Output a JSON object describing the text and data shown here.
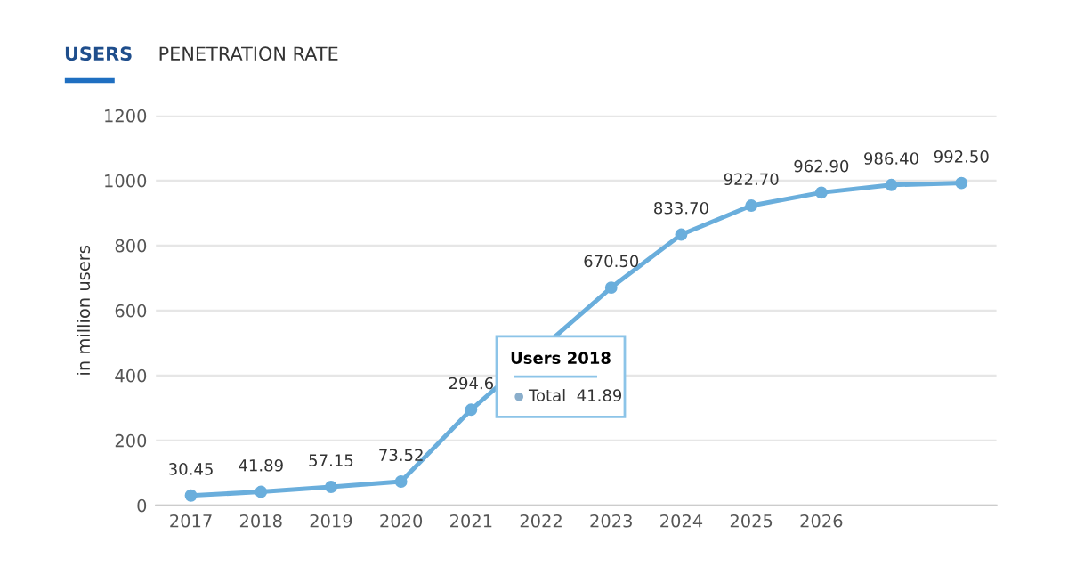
{
  "chart_data": {
    "type": "line",
    "ylabel": "in million users",
    "annotations": [
      "USERS",
      "PENETRATION RATE",
      "Users 2018",
      "Total  41.89"
    ],
    "categories": [
      "2017",
      "2018",
      "2019",
      "2020",
      "2021",
      "2022",
      "2023",
      "2024",
      "2025",
      "2026",
      null,
      null
    ],
    "series": [
      {
        "color": "#6aaedc",
        "values": [
          30.45,
          41.89,
          57.15,
          73.52,
          294.6,
          null,
          670.5,
          833.7,
          922.7,
          962.9,
          986.4,
          992.5
        ],
        "value_labels": [
          "30.45",
          "41.89",
          "57.15",
          "73.52",
          "294.6",
          null,
          "670.50",
          "833.70",
          "922.70",
          "962.90",
          "986.40",
          "992.50"
        ]
      }
    ],
    "ylim": [
      0,
      1200
    ],
    "yticks": [
      0,
      200,
      400,
      600,
      800,
      1000,
      1200
    ],
    "grid": "y",
    "marker": "circle",
    "line_style": "solid"
  }
}
